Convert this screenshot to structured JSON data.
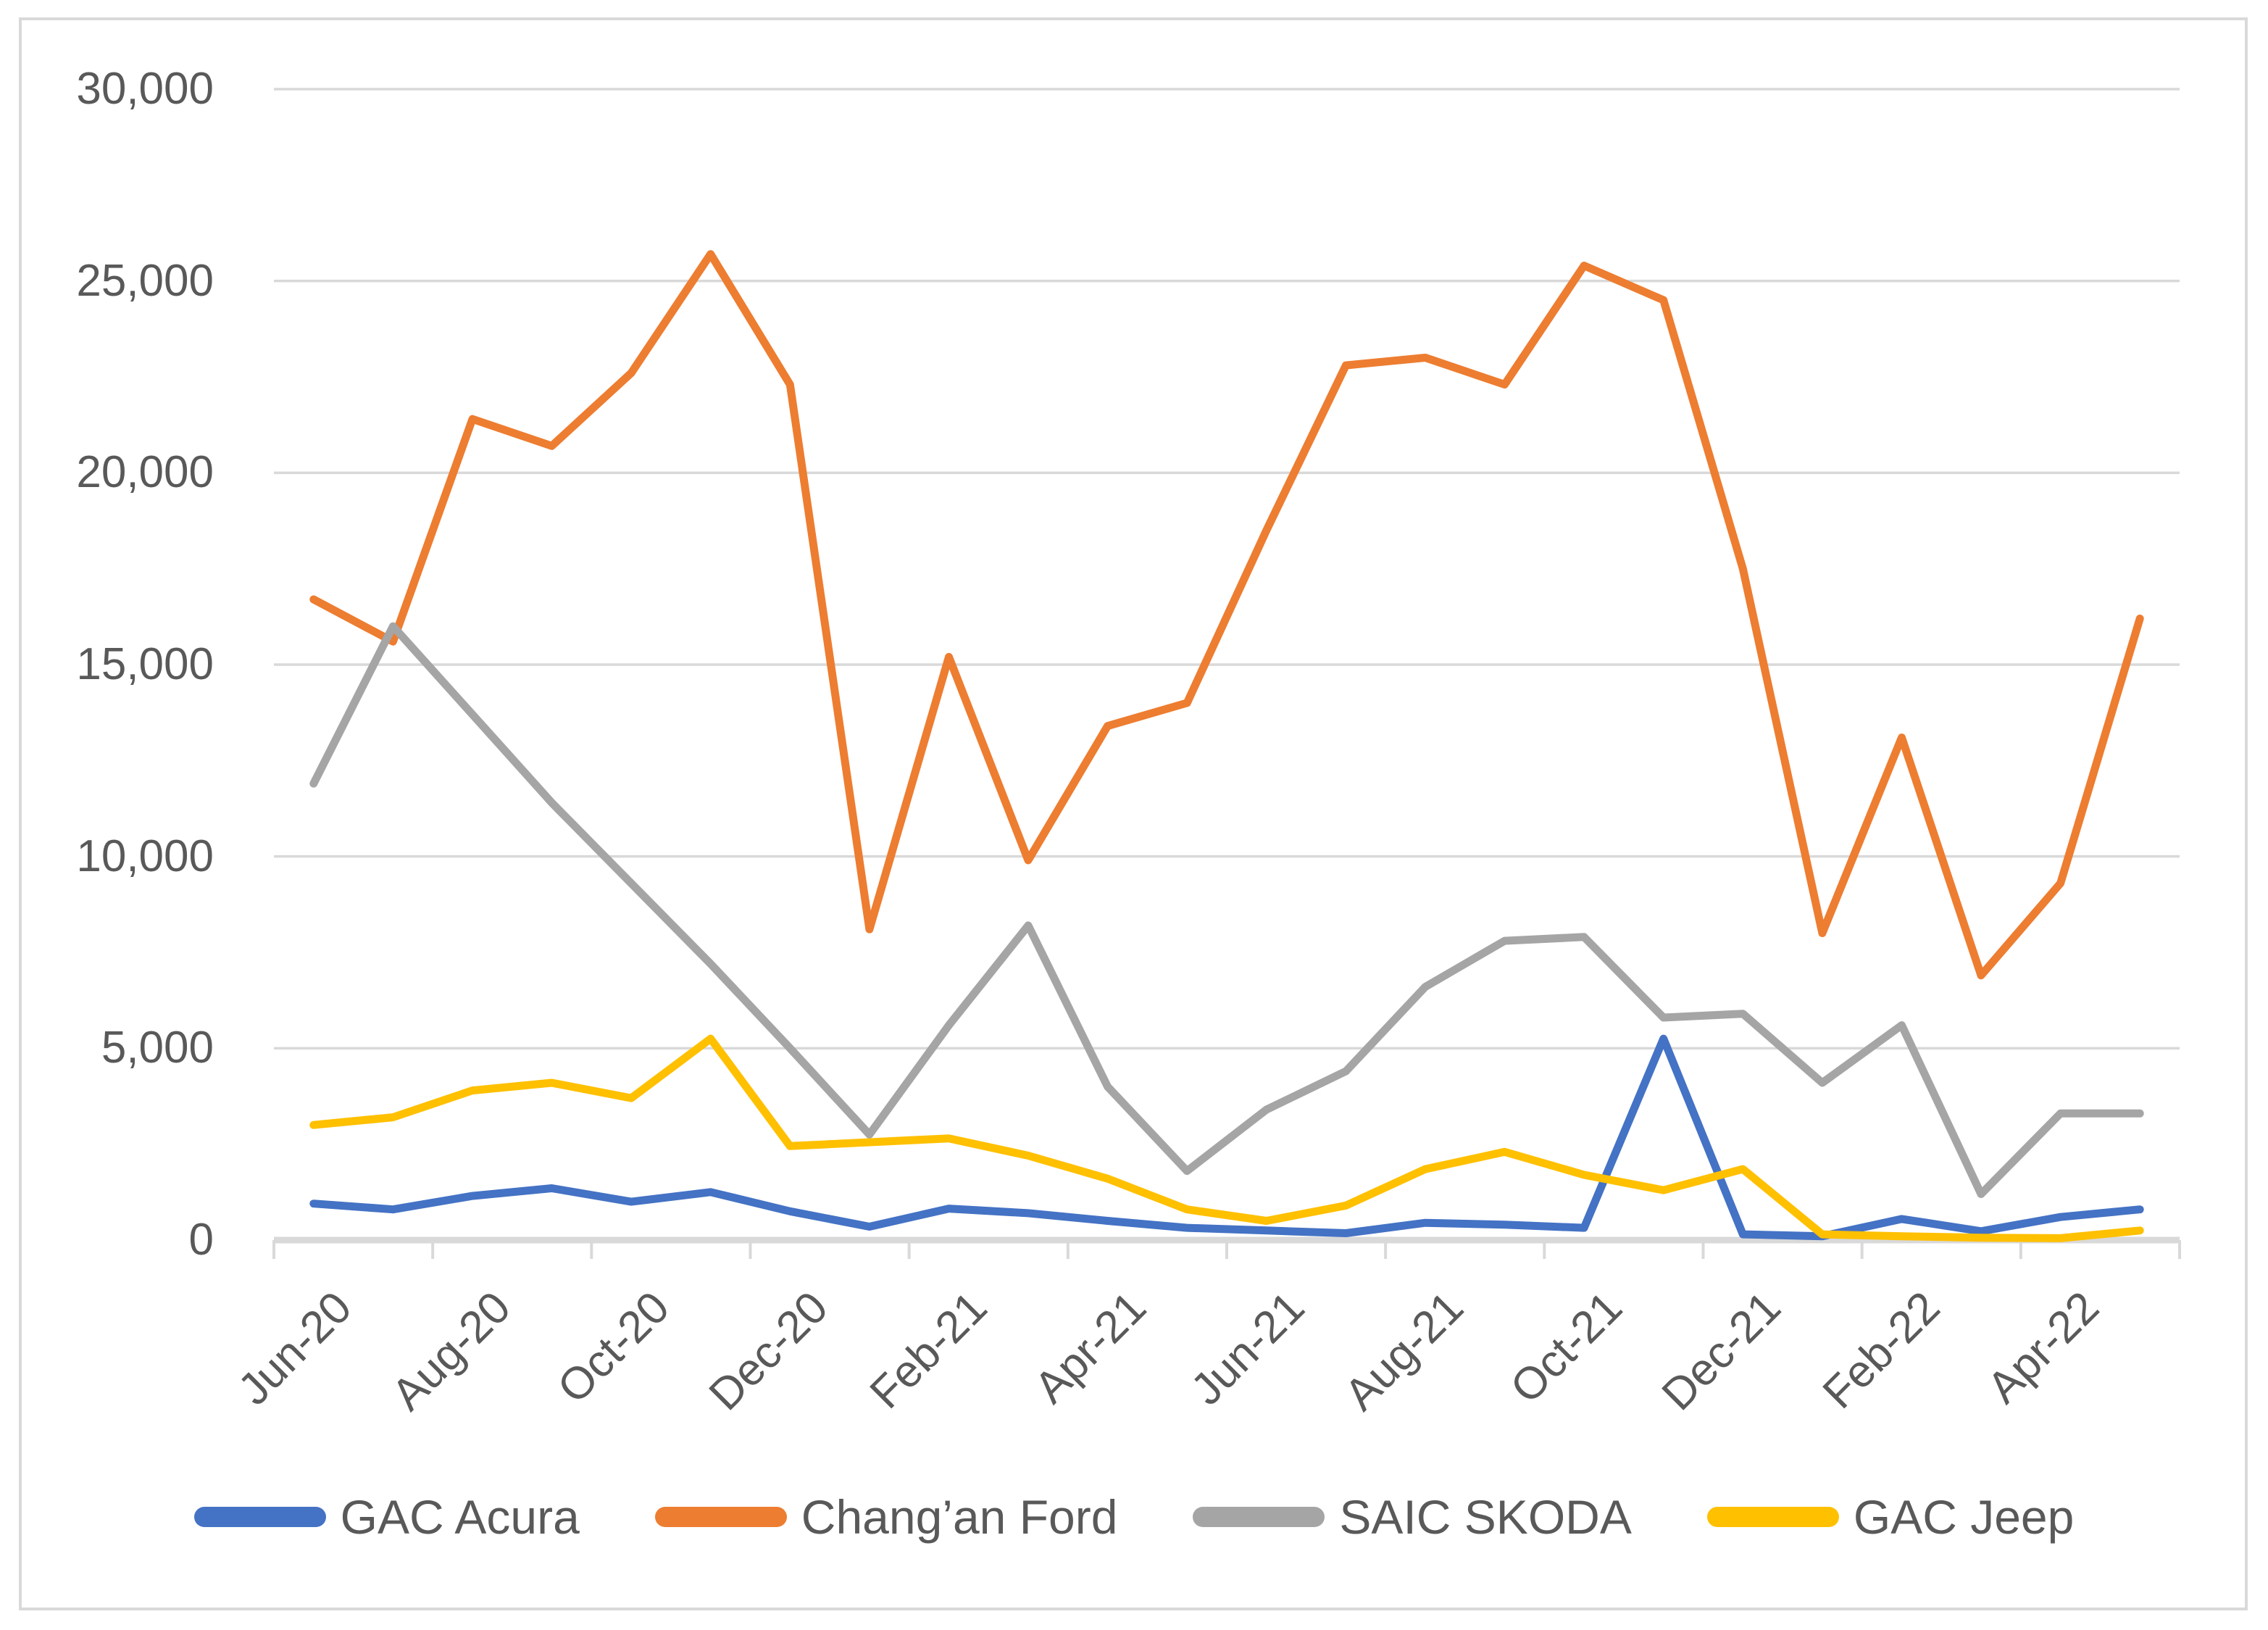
{
  "chart_data": {
    "type": "line",
    "title": "",
    "xlabel": "",
    "ylabel": "",
    "categories": [
      "Jun-20",
      "Jul-20",
      "Aug-20",
      "Sep-20",
      "Oct-20",
      "Nov-20",
      "Dec-20",
      "Jan-21",
      "Feb-21",
      "Mar-21",
      "Apr-21",
      "May-21",
      "Jun-21",
      "Jul-21",
      "Aug-21",
      "Sep-21",
      "Oct-21",
      "Nov-21",
      "Dec-21",
      "Jan-22",
      "Feb-22",
      "Mar-22",
      "Apr-22",
      "May-22"
    ],
    "x_tick_labels": [
      "Jun-20",
      "Aug-20",
      "Oct-20",
      "Dec-20",
      "Feb-21",
      "Apr-21",
      "Jun-21",
      "Aug-21",
      "Oct-21",
      "Dec-21",
      "Feb-22",
      "Apr-22"
    ],
    "x_label_every": 2,
    "series": [
      {
        "name": "GAC Acura",
        "color": "#4472C4",
        "values": [
          950,
          800,
          1150,
          1350,
          1000,
          1250,
          750,
          350,
          820,
          700,
          500,
          320,
          250,
          180,
          450,
          400,
          320,
          5250,
          150,
          100,
          550,
          230,
          600,
          800
        ]
      },
      {
        "name": "Chang’an Ford",
        "color": "#ED7D31",
        "values": [
          16700,
          15600,
          21400,
          20700,
          22600,
          25700,
          22300,
          8100,
          15200,
          9900,
          13400,
          14000,
          18500,
          22800,
          23000,
          22300,
          25400,
          24500,
          17500,
          8000,
          13100,
          6900,
          9300,
          16200
        ]
      },
      {
        "name": "SAIC SKODA",
        "color": "#A5A5A5",
        "values": [
          11900,
          16000,
          13700,
          11400,
          9300,
          7200,
          5000,
          2750,
          5600,
          8200,
          4000,
          1800,
          3400,
          4400,
          6600,
          7800,
          7900,
          5800,
          5900,
          4100,
          5600,
          1200,
          3300,
          3300
        ]
      },
      {
        "name": "GAC Jeep",
        "color": "#FFC000",
        "values": [
          3000,
          3200,
          3900,
          4100,
          3700,
          5250,
          2450,
          2550,
          2650,
          2200,
          1600,
          800,
          500,
          900,
          1850,
          2300,
          1700,
          1300,
          1850,
          150,
          100,
          60,
          50,
          250
        ]
      }
    ],
    "ylim": [
      0,
      30000
    ],
    "ytick_step": 5000,
    "ytick_labels": [
      "0",
      "5,000",
      "10,000",
      "15,000",
      "20,000",
      "25,000",
      "30,000"
    ],
    "grid": true,
    "gridline_color": "#D9D9D9",
    "axis_line_color": "#D9D9D9",
    "tick_color": "#D9D9D9",
    "text_color": "#595959",
    "legend_position": "bottom"
  }
}
